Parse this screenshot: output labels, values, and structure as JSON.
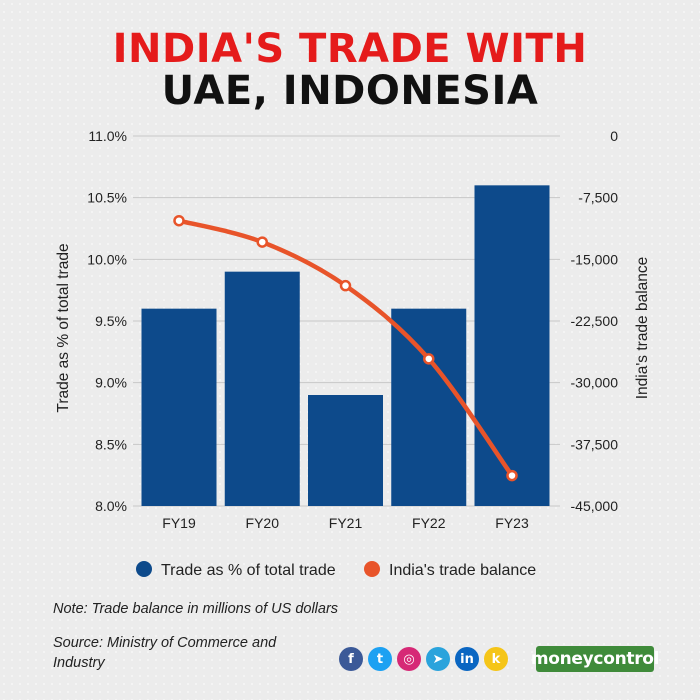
{
  "header": {
    "title_line1": "INDIA'S TRADE WITH",
    "title_line2": "UAE, INDONESIA"
  },
  "chart_data": {
    "type": "bar+line",
    "categories": [
      "FY19",
      "FY20",
      "FY21",
      "FY22",
      "FY23"
    ],
    "series": [
      {
        "name": "Trade as % of total trade",
        "type": "bar",
        "axis": "left",
        "color": "#0d4a8b",
        "values": [
          9.6,
          9.9,
          8.9,
          9.6,
          10.6
        ]
      },
      {
        "name": "India's trade balance",
        "type": "line",
        "axis": "right",
        "color": "#e8542a",
        "values": [
          -10300,
          -12900,
          -18200,
          -27100,
          -41300
        ]
      }
    ],
    "y_left": {
      "label": "Trade as % of total trade",
      "ticks": [
        "11.0%",
        "10.5%",
        "10.0%",
        "9.5%",
        "9.0%",
        "8.5%",
        "8.0%"
      ],
      "range": [
        8.0,
        11.0
      ]
    },
    "y_right": {
      "label": "India's trade balance",
      "ticks": [
        "0",
        "-7,500",
        "-15,000",
        "-22,500",
        "-30,000",
        "-37,500",
        "-45,000"
      ],
      "range": [
        -45000,
        0
      ]
    },
    "grid": true,
    "legend_position": "bottom"
  },
  "footer": {
    "note": "Note: Trade balance in millions of US dollars",
    "source": "Source: Ministry of Commerce and Industry",
    "brand": "moneycontrol",
    "social_icons": [
      "facebook-icon",
      "twitter-icon",
      "instagram-icon",
      "telegram-icon",
      "linkedin-icon",
      "koo-icon"
    ],
    "social_glyphs": [
      "f",
      "t",
      "◎",
      "➤",
      "in",
      "k"
    ],
    "social_colors": [
      "#3b5998",
      "#1da1f2",
      "#d62976",
      "#2aa3dc",
      "#0a66c2",
      "#f5c518"
    ]
  }
}
